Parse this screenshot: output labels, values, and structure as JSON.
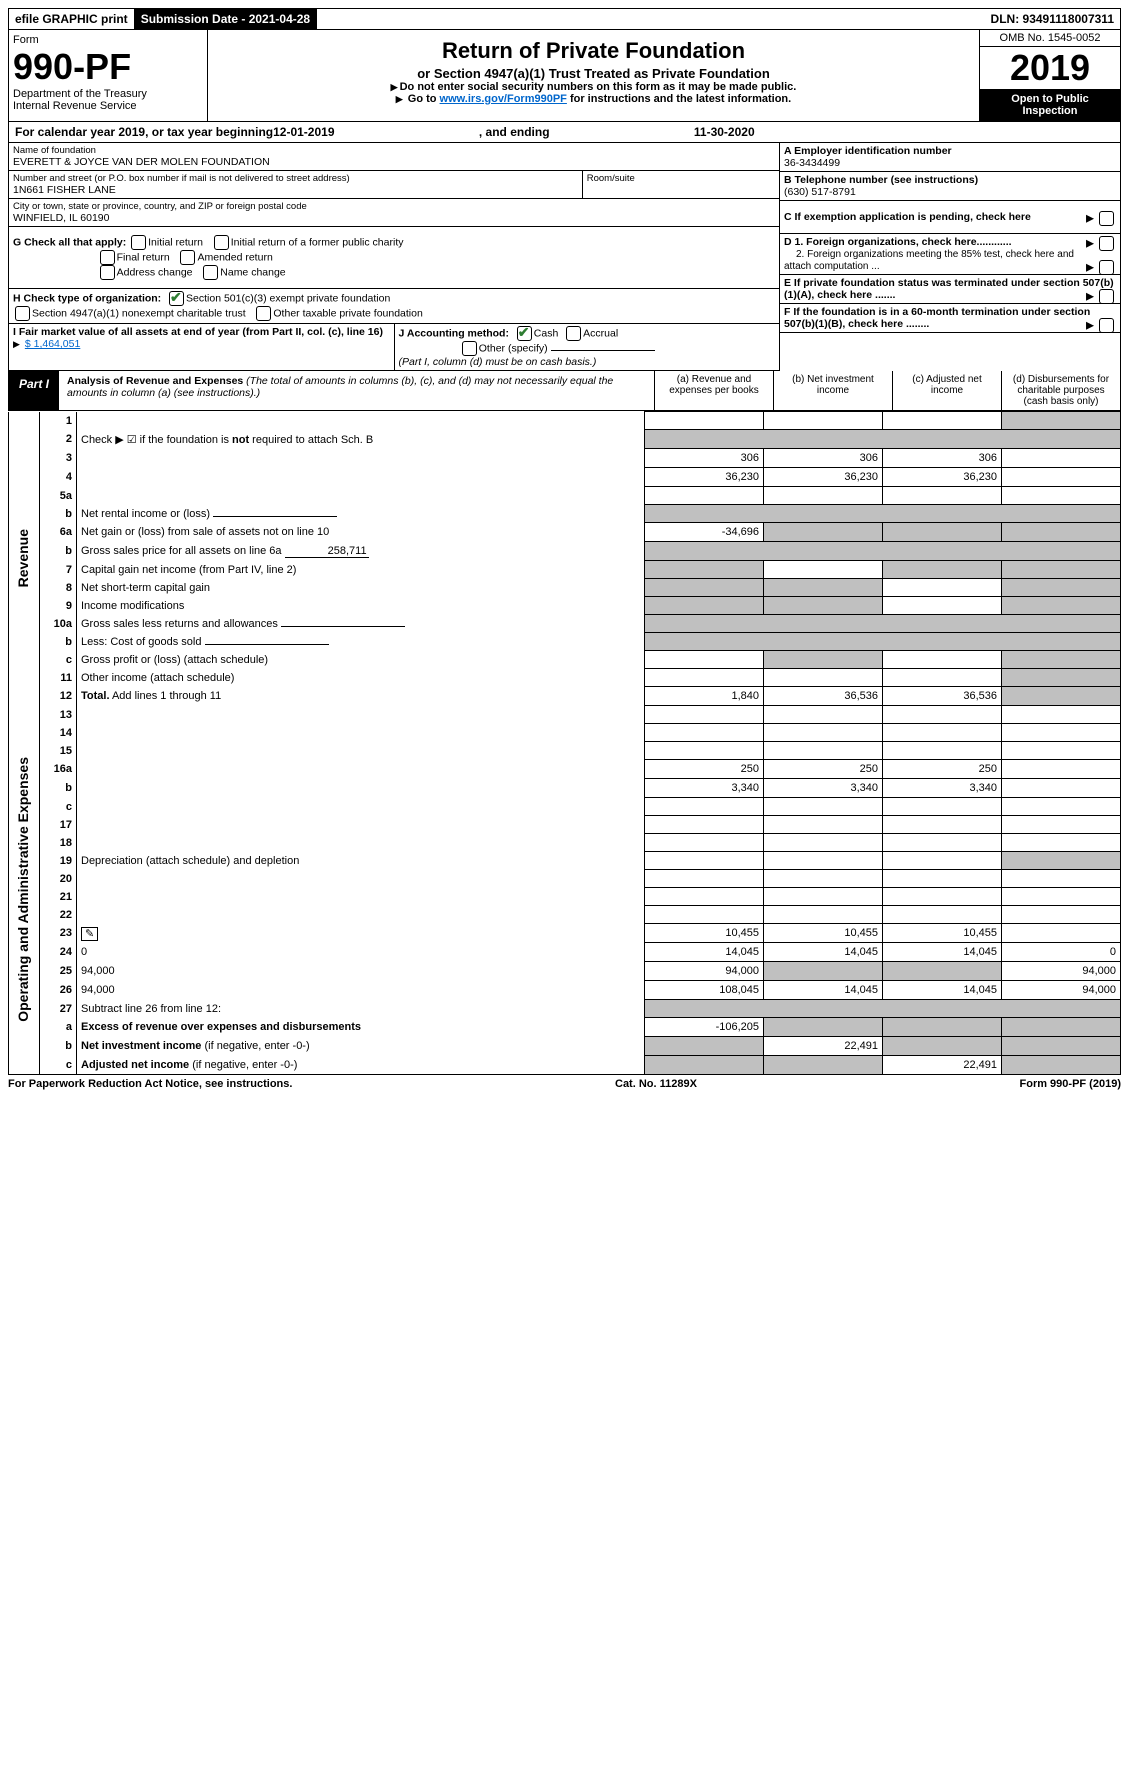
{
  "top": {
    "efile": "efile GRAPHIC print",
    "submission_label": "Submission Date - 2021-04-28",
    "dln_label": "DLN: 93491118007311"
  },
  "header": {
    "form_word": "Form",
    "form_number": "990-PF",
    "dept": "Department of the Treasury",
    "irs": "Internal Revenue Service",
    "title": "Return of Private Foundation",
    "subtitle": "or Section 4947(a)(1) Trust Treated as Private Foundation",
    "note1": "Do not enter social security numbers on this form as it may be made public.",
    "note2_pre": "Go to ",
    "note2_link": "www.irs.gov/Form990PF",
    "note2_post": " for instructions and the latest information.",
    "omb": "OMB No. 1545-0052",
    "year": "2019",
    "open": "Open to Public Inspection"
  },
  "calyear": {
    "pre": "For calendar year 2019, or tax year beginning ",
    "begin": "12-01-2019",
    "mid": ", and ending ",
    "end": "11-30-2020"
  },
  "info": {
    "name_label": "Name of foundation",
    "name": "EVERETT & JOYCE VAN DER MOLEN FOUNDATION",
    "a_label": "A Employer identification number",
    "ein": "36-3434499",
    "street_label": "Number and street (or P.O. box number if mail is not delivered to street address)",
    "street": "1N661 FISHER LANE",
    "room_label": "Room/suite",
    "b_label": "B Telephone number (see instructions)",
    "phone": "(630) 517-8791",
    "city_label": "City or town, state or province, country, and ZIP or foreign postal code",
    "city": "WINFIELD, IL  60190",
    "c_label": "C If exemption application is pending, check here",
    "g_label": "G Check all that apply:",
    "g_initial": "Initial return",
    "g_initial_former": "Initial return of a former public charity",
    "g_final": "Final return",
    "g_amended": "Amended return",
    "g_address": "Address change",
    "g_name": "Name change",
    "d1": "D 1. Foreign organizations, check here............",
    "d2": "2. Foreign organizations meeting the 85% test, check here and attach computation ...",
    "h_label": "H Check type of organization:",
    "h_501c3": "Section 501(c)(3) exempt private foundation",
    "h_4947": "Section 4947(a)(1) nonexempt charitable trust",
    "h_other": "Other taxable private foundation",
    "e_label": "E If private foundation status was terminated under section 507(b)(1)(A), check here .......",
    "i_label": "I Fair market value of all assets at end of year (from Part II, col. (c), line 16)",
    "i_value": "$  1,464,051",
    "j_label": "J Accounting method:",
    "j_cash": "Cash",
    "j_accrual": "Accrual",
    "j_other": "Other (specify)",
    "j_note": "(Part I, column (d) must be on cash basis.)",
    "f_label": "F If the foundation is in a 60-month termination under section 507(b)(1)(B), check here ........"
  },
  "part1": {
    "label": "Part I",
    "title": "Analysis of Revenue and Expenses",
    "desc": "(The total of amounts in columns (b), (c), and (d) may not necessarily equal the amounts in column (a) (see instructions).)",
    "col_a": "(a)   Revenue and expenses per books",
    "col_b": "(b)  Net investment income",
    "col_c": "(c)  Adjusted net income",
    "col_d": "(d)  Disbursements for charitable purposes (cash basis only)"
  },
  "side": {
    "revenue": "Revenue",
    "expenses": "Operating and Administrative Expenses"
  },
  "rows": [
    {
      "n": "1",
      "d": "",
      "a": "",
      "b": "",
      "c": "",
      "d_grey": true
    },
    {
      "n": "2",
      "d": "Check ▶ ☑ if the foundation is <b>not</b> required to attach Sch. B",
      "all_grey": true
    },
    {
      "n": "3",
      "d": "",
      "a": "306",
      "b": "306",
      "c": "306"
    },
    {
      "n": "4",
      "d": "",
      "a": "36,230",
      "b": "36,230",
      "c": "36,230"
    },
    {
      "n": "5a",
      "d": "",
      "a": "",
      "b": "",
      "c": ""
    },
    {
      "n": "b",
      "d": "Net rental income or (loss)",
      "all_grey": true,
      "inline": true
    },
    {
      "n": "6a",
      "d": "Net gain or (loss) from sale of assets not on line 10",
      "a": "-34,696",
      "b_grey": true,
      "c_grey": true,
      "d_grey": true
    },
    {
      "n": "b",
      "d": "Gross sales price for all assets on line 6a",
      "inline_val": "258,711",
      "all_grey": true
    },
    {
      "n": "7",
      "d": "Capital gain net income (from Part IV, line 2)",
      "a_grey": true,
      "b": "",
      "c_grey": true,
      "d_grey": true
    },
    {
      "n": "8",
      "d": "Net short-term capital gain",
      "a_grey": true,
      "b_grey": true,
      "c": "",
      "d_grey": true
    },
    {
      "n": "9",
      "d": "Income modifications",
      "a_grey": true,
      "b_grey": true,
      "c": "",
      "d_grey": true
    },
    {
      "n": "10a",
      "d": "Gross sales less returns and allowances",
      "inline": true,
      "all_grey": true
    },
    {
      "n": "b",
      "d": "Less: Cost of goods sold",
      "inline": true,
      "all_grey": true
    },
    {
      "n": "c",
      "d": "Gross profit or (loss) (attach schedule)",
      "a": "",
      "b_grey": true,
      "c": "",
      "d_grey": true
    },
    {
      "n": "11",
      "d": "Other income (attach schedule)",
      "a": "",
      "b": "",
      "c": "",
      "d_grey": true
    },
    {
      "n": "12",
      "d": "<b>Total.</b> Add lines 1 through 11",
      "a": "1,840",
      "b": "36,536",
      "c": "36,536",
      "d_grey": true
    },
    {
      "n": "13",
      "d": "",
      "a": "",
      "b": "",
      "c": ""
    },
    {
      "n": "14",
      "d": "",
      "a": "",
      "b": "",
      "c": ""
    },
    {
      "n": "15",
      "d": "",
      "a": "",
      "b": "",
      "c": ""
    },
    {
      "n": "16a",
      "d": "",
      "a": "250",
      "b": "250",
      "c": "250"
    },
    {
      "n": "b",
      "d": "",
      "a": "3,340",
      "b": "3,340",
      "c": "3,340"
    },
    {
      "n": "c",
      "d": "",
      "a": "",
      "b": "",
      "c": ""
    },
    {
      "n": "17",
      "d": "",
      "a": "",
      "b": "",
      "c": ""
    },
    {
      "n": "18",
      "d": "",
      "a": "",
      "b": "",
      "c": ""
    },
    {
      "n": "19",
      "d": "Depreciation (attach schedule) and depletion",
      "a": "",
      "b": "",
      "c": "",
      "d_grey": true
    },
    {
      "n": "20",
      "d": "",
      "a": "",
      "b": "",
      "c": ""
    },
    {
      "n": "21",
      "d": "",
      "a": "",
      "b": "",
      "c": ""
    },
    {
      "n": "22",
      "d": "",
      "a": "",
      "b": "",
      "c": ""
    },
    {
      "n": "23",
      "d": "",
      "a": "10,455",
      "b": "10,455",
      "c": "10,455",
      "icon": true
    },
    {
      "n": "24",
      "d": "0",
      "a": "14,045",
      "b": "14,045",
      "c": "14,045"
    },
    {
      "n": "25",
      "d": "94,000",
      "a": "94,000",
      "b_grey": true,
      "c_grey": true
    },
    {
      "n": "26",
      "d": "94,000",
      "a": "108,045",
      "b": "14,045",
      "c": "14,045"
    },
    {
      "n": "27",
      "d": "Subtract line 26 from line 12:",
      "all_grey": true
    },
    {
      "n": "a",
      "d": "<b>Excess of revenue over expenses and disbursements</b>",
      "a": "-106,205",
      "b_grey": true,
      "c_grey": true,
      "d_grey": true
    },
    {
      "n": "b",
      "d": "<b>Net investment income</b> (if negative, enter -0-)",
      "a_grey": true,
      "b": "22,491",
      "c_grey": true,
      "d_grey": true
    },
    {
      "n": "c",
      "d": "<b>Adjusted net income</b> (if negative, enter -0-)",
      "a_grey": true,
      "b_grey": true,
      "c": "22,491",
      "d_grey": true
    }
  ],
  "footer": {
    "left": "For Paperwork Reduction Act Notice, see instructions.",
    "mid": "Cat. No. 11289X",
    "right": "Form 990-PF (2019)"
  }
}
